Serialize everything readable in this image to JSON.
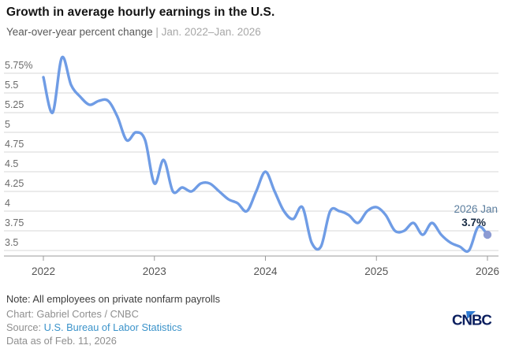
{
  "header": {
    "title": "Growth in average hourly earnings in the U.S.",
    "subtitle_main": "Year-over-year percent change ",
    "subtitle_period": "| Jan. 2022–Jan. 2026"
  },
  "chart_data": {
    "type": "line",
    "title": "Growth in average hourly earnings in the U.S.",
    "subtitle": "Year-over-year percent change | Jan. 2022–Jan. 2026",
    "xlabel": "",
    "ylabel": "Year-over-year percent change",
    "unit": "%",
    "frequency": "monthly",
    "x_start": "Jan 2022",
    "x_end": "Jan 2026",
    "series": [
      {
        "year": "2022",
        "values": [
          5.7,
          5.25,
          5.95,
          5.6,
          5.45,
          5.35,
          5.4,
          5.4,
          5.2,
          4.9,
          5.0,
          4.9
        ]
      },
      {
        "year": "2023",
        "values": [
          4.35,
          4.65,
          4.25,
          4.3,
          4.25,
          4.35,
          4.35,
          4.25,
          4.15,
          4.1,
          4.0,
          4.25
        ]
      },
      {
        "year": "2024",
        "values": [
          4.5,
          4.25,
          4.0,
          3.9,
          4.05,
          3.6,
          3.55,
          4.0,
          4.0,
          3.95,
          3.85,
          4.0
        ]
      },
      {
        "year": "2025",
        "values": [
          4.05,
          3.95,
          3.75,
          3.75,
          3.85,
          3.7,
          3.85,
          3.7,
          3.6,
          3.55,
          3.5,
          3.8
        ]
      },
      {
        "year": "2026",
        "values": [
          3.7
        ]
      }
    ],
    "latest_point": {
      "month": "Jan",
      "year": "2026",
      "value": 3.7
    },
    "annotation": {
      "label": "2026 Jan",
      "value": "3.7%"
    },
    "y_ticks": [
      {
        "label": "5.75%",
        "value": 5.75
      },
      {
        "label": "5.5",
        "value": 5.5
      },
      {
        "label": "5.25",
        "value": 5.25
      },
      {
        "label": "5",
        "value": 5.0
      },
      {
        "label": "4.75",
        "value": 4.75
      },
      {
        "label": "4.5",
        "value": 4.5
      },
      {
        "label": "4.25",
        "value": 4.25
      },
      {
        "label": "4",
        "value": 4.0
      },
      {
        "label": "3.75",
        "value": 3.75
      },
      {
        "label": "3.5",
        "value": 3.5
      }
    ],
    "x_ticks": [
      {
        "label": "2022",
        "month_index": 0
      },
      {
        "label": "2023",
        "month_index": 12
      },
      {
        "label": "2024",
        "month_index": 24
      },
      {
        "label": "2025",
        "month_index": 36
      },
      {
        "label": "2026",
        "month_index": 48
      }
    ],
    "ylim": [
      3.4,
      6.0
    ],
    "grid": true,
    "legend": false,
    "colors": {
      "line": "#6f9ce5",
      "end_dot": "#8c9bd3",
      "gridline": "#d7d7d7",
      "axis": "#9a9a9a",
      "y_tick_text": "#6b6b6b",
      "x_tick_text": "#555555",
      "annotation_date": "#5d7f9f",
      "annotation_value": "#152841"
    }
  },
  "footer": {
    "note": "Note: All employees on private nonfarm payrolls",
    "credit": "Chart: Gabriel Cortes / CNBC",
    "source_label": "Source: ",
    "source_link": "U.S. Bureau of Labor Statistics",
    "data_as_of": "Data as of Feb. 11, 2026",
    "logo_text": "CNBC",
    "logo_colors": {
      "wordmark": "#0a1e5e",
      "peacock": "#2f7bd3"
    },
    "link_color": "#3b93ca"
  }
}
